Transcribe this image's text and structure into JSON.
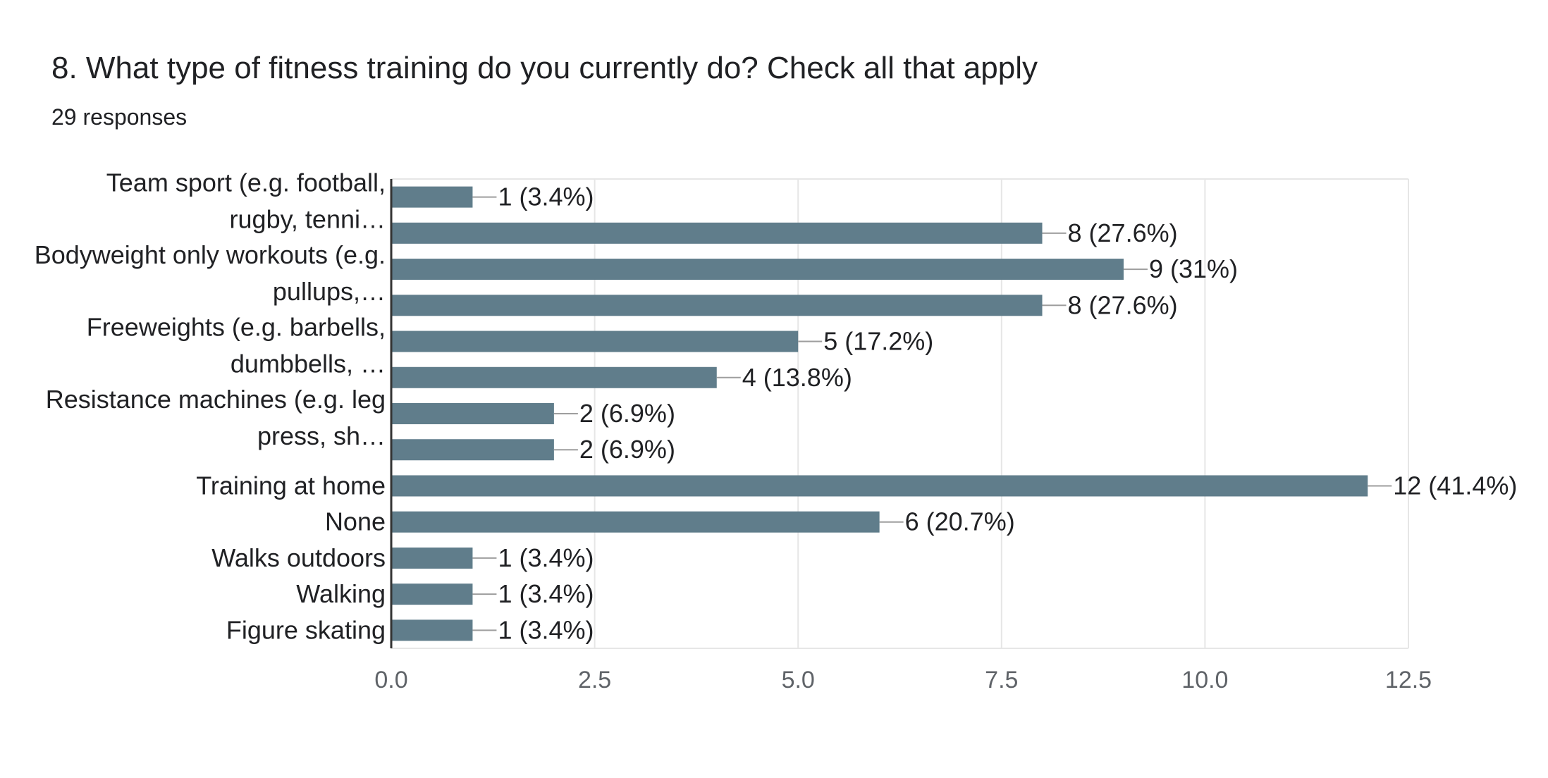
{
  "question": {
    "title": "8. What type of fitness training do you currently do? Check all that apply",
    "responses": "29 responses"
  },
  "colors": {
    "bar": "#607d8b",
    "grid": "#e6e6e6",
    "axis": "#333333",
    "leader": "#9e9e9e",
    "text": "#202124",
    "tick_text": "#5f6368"
  },
  "chart_data": {
    "type": "bar",
    "orientation": "horizontal",
    "categories": [
      [
        "Team sport (e.g. football,",
        "rugby, tenni…"
      ],
      [],
      [
        "Bodyweight only workouts (e.g.",
        "pullups,…"
      ],
      [],
      [
        "Freeweights (e.g. barbells,",
        "dumbbells, …"
      ],
      [],
      [
        "Resistance machines (e.g. leg",
        "press, sh…"
      ],
      [],
      [
        "Training at home"
      ],
      [
        "None"
      ],
      [
        "Walks outdoors"
      ],
      [
        "Walking"
      ],
      [
        "Figure skating"
      ]
    ],
    "values": [
      1,
      8,
      9,
      8,
      5,
      4,
      2,
      2,
      12,
      6,
      1,
      1,
      1
    ],
    "value_labels": [
      "1 (3.4%)",
      "8 (27.6%)",
      "9 (31%)",
      "8 (27.6%)",
      "5 (17.2%)",
      "4 (13.8%)",
      "2 (6.9%)",
      "2 (6.9%)",
      "12 (41.4%)",
      "6 (20.7%)",
      "1 (3.4%)",
      "1 (3.4%)",
      "1 (3.4%)"
    ],
    "xlim": [
      0,
      12.5
    ],
    "xticks": [
      0,
      2.5,
      5,
      7.5,
      10,
      12.5
    ],
    "xtick_labels": [
      "0.0",
      "2.5",
      "5.0",
      "7.5",
      "10.0",
      "12.5"
    ],
    "grid": true,
    "legend": "none"
  }
}
